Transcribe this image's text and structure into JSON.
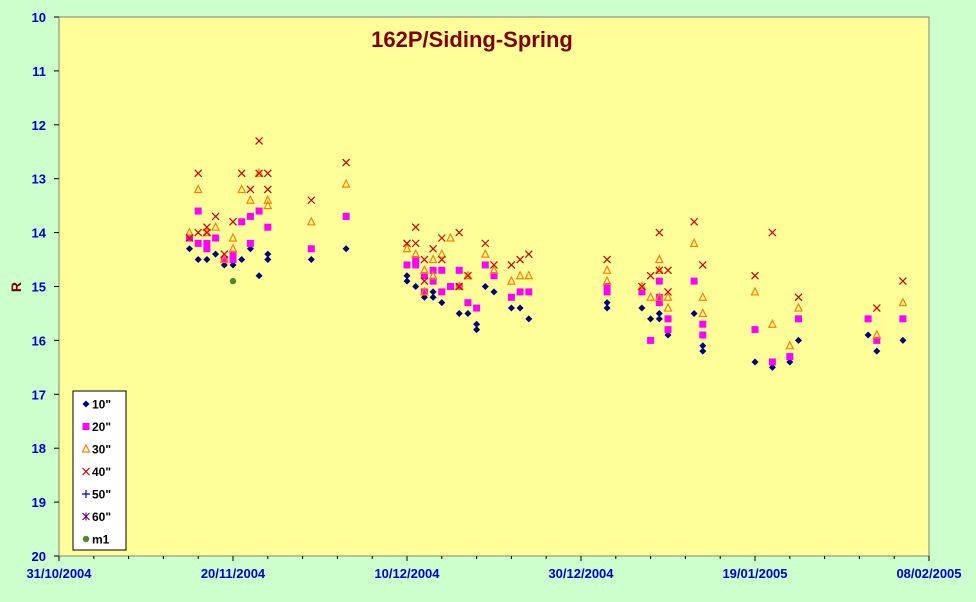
{
  "chart_data": {
    "type": "scatter",
    "title": "162P/Siding-Spring",
    "xlabel": "",
    "ylabel": "R",
    "x_type": "date",
    "xlim": [
      "31/10/2004",
      "08/02/2005"
    ],
    "x_ticks": [
      "31/10/2004",
      "20/11/2004",
      "10/12/2004",
      "30/12/2004",
      "19/01/2005",
      "08/02/2005"
    ],
    "ylim": [
      20,
      10
    ],
    "y_inverted": true,
    "y_ticks": [
      "10",
      "11",
      "12",
      "13",
      "14",
      "15",
      "16",
      "17",
      "18",
      "19",
      "20"
    ],
    "grid": false,
    "legend_position": "bottom-left",
    "series": [
      {
        "name": "10\"",
        "marker": "diamond",
        "color": "#000080",
        "points": [
          [
            "2004-11-15",
            14.3
          ],
          [
            "2004-11-16",
            14.5
          ],
          [
            "2004-11-17",
            14.5
          ],
          [
            "2004-11-18",
            14.4
          ],
          [
            "2004-11-19",
            14.6
          ],
          [
            "2004-11-20",
            14.6
          ],
          [
            "2004-11-21",
            14.5
          ],
          [
            "2004-11-22",
            14.3
          ],
          [
            "2004-11-23",
            14.8
          ],
          [
            "2004-11-24",
            14.4
          ],
          [
            "2004-11-24",
            14.5
          ],
          [
            "2004-11-29",
            14.5
          ],
          [
            "2004-12-03",
            14.3
          ],
          [
            "2004-12-10",
            14.8
          ],
          [
            "2004-12-10",
            14.9
          ],
          [
            "2004-12-11",
            15.0
          ],
          [
            "2004-12-12",
            15.1
          ],
          [
            "2004-12-12",
            15.2
          ],
          [
            "2004-12-13",
            15.1
          ],
          [
            "2004-12-13",
            15.2
          ],
          [
            "2004-12-14",
            15.3
          ],
          [
            "2004-12-15",
            15.0
          ],
          [
            "2004-12-16",
            15.5
          ],
          [
            "2004-12-17",
            15.5
          ],
          [
            "2004-12-18",
            15.7
          ],
          [
            "2004-12-18",
            15.8
          ],
          [
            "2004-12-19",
            15.0
          ],
          [
            "2004-12-20",
            15.1
          ],
          [
            "2004-12-22",
            15.4
          ],
          [
            "2004-12-23",
            15.4
          ],
          [
            "2004-12-24",
            15.6
          ],
          [
            "2005-01-02",
            15.3
          ],
          [
            "2005-01-02",
            15.4
          ],
          [
            "2005-01-06",
            15.4
          ],
          [
            "2005-01-07",
            15.6
          ],
          [
            "2005-01-08",
            15.5
          ],
          [
            "2005-01-08",
            15.6
          ],
          [
            "2005-01-09",
            15.9
          ],
          [
            "2005-01-12",
            15.5
          ],
          [
            "2005-01-13",
            16.1
          ],
          [
            "2005-01-13",
            16.2
          ],
          [
            "2005-01-19",
            16.4
          ],
          [
            "2005-01-21",
            16.5
          ],
          [
            "2005-01-23",
            16.4
          ],
          [
            "2005-01-24",
            16.0
          ],
          [
            "2005-02-01",
            15.9
          ],
          [
            "2005-02-02",
            16.2
          ],
          [
            "2005-02-05",
            16.0
          ]
        ]
      },
      {
        "name": "20\"",
        "marker": "square",
        "color": "#ff00ff",
        "points": [
          [
            "2004-11-15",
            14.1
          ],
          [
            "2004-11-16",
            13.6
          ],
          [
            "2004-11-16",
            14.2
          ],
          [
            "2004-11-17",
            14.2
          ],
          [
            "2004-11-17",
            14.3
          ],
          [
            "2004-11-18",
            14.1
          ],
          [
            "2004-11-19",
            14.5
          ],
          [
            "2004-11-20",
            14.4
          ],
          [
            "2004-11-20",
            14.5
          ],
          [
            "2004-11-21",
            13.8
          ],
          [
            "2004-11-22",
            13.7
          ],
          [
            "2004-11-22",
            14.2
          ],
          [
            "2004-11-23",
            13.6
          ],
          [
            "2004-11-24",
            13.9
          ],
          [
            "2004-11-29",
            14.3
          ],
          [
            "2004-12-03",
            13.7
          ],
          [
            "2004-12-10",
            14.6
          ],
          [
            "2004-12-11",
            14.5
          ],
          [
            "2004-12-11",
            14.6
          ],
          [
            "2004-12-12",
            14.8
          ],
          [
            "2004-12-12",
            15.1
          ],
          [
            "2004-12-13",
            14.7
          ],
          [
            "2004-12-13",
            14.9
          ],
          [
            "2004-12-14",
            14.7
          ],
          [
            "2004-12-14",
            15.1
          ],
          [
            "2004-12-15",
            15.0
          ],
          [
            "2004-12-16",
            14.7
          ],
          [
            "2004-12-16",
            15.0
          ],
          [
            "2004-12-17",
            15.3
          ],
          [
            "2004-12-18",
            15.4
          ],
          [
            "2004-12-19",
            14.6
          ],
          [
            "2004-12-20",
            14.8
          ],
          [
            "2004-12-22",
            15.2
          ],
          [
            "2004-12-23",
            15.1
          ],
          [
            "2004-12-24",
            15.1
          ],
          [
            "2005-01-02",
            15.0
          ],
          [
            "2005-01-02",
            15.1
          ],
          [
            "2005-01-06",
            15.1
          ],
          [
            "2005-01-07",
            16.0
          ],
          [
            "2005-01-08",
            15.2
          ],
          [
            "2005-01-08",
            15.3
          ],
          [
            "2005-01-08",
            14.9
          ],
          [
            "2005-01-09",
            15.6
          ],
          [
            "2005-01-09",
            15.8
          ],
          [
            "2005-01-12",
            14.9
          ],
          [
            "2005-01-13",
            15.7
          ],
          [
            "2005-01-13",
            15.9
          ],
          [
            "2005-01-19",
            15.8
          ],
          [
            "2005-01-21",
            16.4
          ],
          [
            "2005-01-23",
            16.3
          ],
          [
            "2005-01-24",
            15.6
          ],
          [
            "2005-02-01",
            15.6
          ],
          [
            "2005-02-02",
            16.0
          ],
          [
            "2005-02-05",
            15.6
          ]
        ]
      },
      {
        "name": "30\"",
        "marker": "triangle",
        "color": "#ff8000",
        "points": [
          [
            "2004-11-15",
            14.0
          ],
          [
            "2004-11-16",
            13.2
          ],
          [
            "2004-11-17",
            14.0
          ],
          [
            "2004-11-18",
            13.9
          ],
          [
            "2004-11-19",
            14.5
          ],
          [
            "2004-11-20",
            14.1
          ],
          [
            "2004-11-20",
            14.3
          ],
          [
            "2004-11-21",
            13.2
          ],
          [
            "2004-11-22",
            13.4
          ],
          [
            "2004-11-23",
            12.9
          ],
          [
            "2004-11-24",
            13.4
          ],
          [
            "2004-11-24",
            13.5
          ],
          [
            "2004-11-29",
            13.8
          ],
          [
            "2004-12-03",
            13.1
          ],
          [
            "2004-12-10",
            14.3
          ],
          [
            "2004-12-11",
            14.4
          ],
          [
            "2004-12-12",
            14.7
          ],
          [
            "2004-12-12",
            15.1
          ],
          [
            "2004-12-13",
            14.5
          ],
          [
            "2004-12-13",
            14.8
          ],
          [
            "2004-12-14",
            14.4
          ],
          [
            "2004-12-15",
            14.1
          ],
          [
            "2004-12-16",
            15.0
          ],
          [
            "2004-12-17",
            14.8
          ],
          [
            "2004-12-19",
            14.4
          ],
          [
            "2004-12-20",
            14.7
          ],
          [
            "2004-12-22",
            14.9
          ],
          [
            "2004-12-23",
            14.8
          ],
          [
            "2004-12-24",
            14.8
          ],
          [
            "2005-01-02",
            14.7
          ],
          [
            "2005-01-02",
            14.9
          ],
          [
            "2005-01-06",
            15.0
          ],
          [
            "2005-01-07",
            15.2
          ],
          [
            "2005-01-08",
            14.5
          ],
          [
            "2005-01-08",
            14.7
          ],
          [
            "2005-01-08",
            15.2
          ],
          [
            "2005-01-09",
            15.4
          ],
          [
            "2005-01-09",
            15.2
          ],
          [
            "2005-01-12",
            14.2
          ],
          [
            "2005-01-13",
            15.2
          ],
          [
            "2005-01-13",
            15.5
          ],
          [
            "2005-01-19",
            15.1
          ],
          [
            "2005-01-21",
            15.7
          ],
          [
            "2005-01-23",
            16.1
          ],
          [
            "2005-01-24",
            15.4
          ],
          [
            "2005-02-02",
            15.9
          ],
          [
            "2005-02-05",
            15.3
          ]
        ]
      },
      {
        "name": "40\"",
        "marker": "x",
        "color": "#cc0000",
        "points": [
          [
            "2004-11-15",
            14.1
          ],
          [
            "2004-11-16",
            12.9
          ],
          [
            "2004-11-16",
            14.0
          ],
          [
            "2004-11-17",
            13.9
          ],
          [
            "2004-11-17",
            14.0
          ],
          [
            "2004-11-18",
            13.7
          ],
          [
            "2004-11-19",
            14.4
          ],
          [
            "2004-11-20",
            13.8
          ],
          [
            "2004-11-21",
            12.9
          ],
          [
            "2004-11-22",
            13.2
          ],
          [
            "2004-11-23",
            12.3
          ],
          [
            "2004-11-23",
            12.9
          ],
          [
            "2004-11-24",
            12.9
          ],
          [
            "2004-11-24",
            13.2
          ],
          [
            "2004-11-29",
            13.4
          ],
          [
            "2004-12-03",
            12.7
          ],
          [
            "2004-12-10",
            14.2
          ],
          [
            "2004-12-10",
            14.2
          ],
          [
            "2004-12-11",
            14.2
          ],
          [
            "2004-12-11",
            13.9
          ],
          [
            "2004-12-12",
            14.5
          ],
          [
            "2004-12-12",
            14.9
          ],
          [
            "2004-12-13",
            14.3
          ],
          [
            "2004-12-14",
            14.1
          ],
          [
            "2004-12-14",
            14.5
          ],
          [
            "2004-12-16",
            14.0
          ],
          [
            "2004-12-16",
            15.0
          ],
          [
            "2004-12-17",
            14.8
          ],
          [
            "2004-12-19",
            14.2
          ],
          [
            "2004-12-20",
            14.6
          ],
          [
            "2004-12-22",
            14.6
          ],
          [
            "2004-12-23",
            14.5
          ],
          [
            "2004-12-24",
            14.4
          ],
          [
            "2005-01-02",
            14.5
          ],
          [
            "2005-01-06",
            15.0
          ],
          [
            "2005-01-07",
            14.8
          ],
          [
            "2005-01-08",
            14.0
          ],
          [
            "2005-01-08",
            14.7
          ],
          [
            "2005-01-09",
            15.1
          ],
          [
            "2005-01-09",
            14.7
          ],
          [
            "2005-01-12",
            13.8
          ],
          [
            "2005-01-13",
            14.6
          ],
          [
            "2005-01-19",
            14.8
          ],
          [
            "2005-01-21",
            14.0
          ],
          [
            "2005-01-24",
            15.2
          ],
          [
            "2005-02-02",
            15.4
          ],
          [
            "2005-02-05",
            14.9
          ]
        ]
      },
      {
        "name": "50\"",
        "marker": "plus",
        "color": "#0000cc",
        "points": []
      },
      {
        "name": "60\"",
        "marker": "asterisk",
        "color": "#660066",
        "points": []
      },
      {
        "name": "m1",
        "marker": "circle",
        "color": "#4d8c2e",
        "points": [
          [
            "2004-11-20",
            14.9
          ]
        ]
      }
    ]
  }
}
